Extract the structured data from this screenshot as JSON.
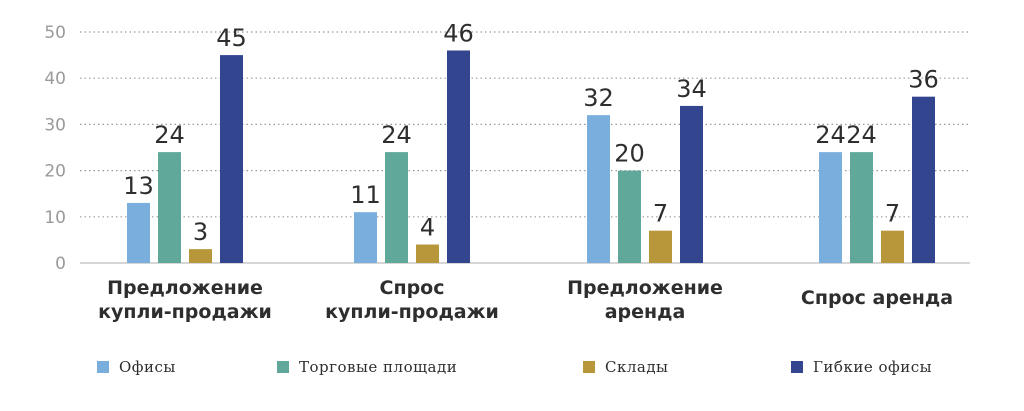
{
  "chart_data": {
    "type": "bar",
    "categories": [
      [
        "Предложение",
        "купли-продажи"
      ],
      [
        "Спрос",
        "купли-продажи"
      ],
      [
        "Предложение",
        "аренда"
      ],
      [
        "Спрос аренда"
      ]
    ],
    "series": [
      {
        "name": "Офисы",
        "color": "#7aaedc",
        "values": [
          13,
          11,
          32,
          24
        ]
      },
      {
        "name": "Торговые площади",
        "color": "#5fa89a",
        "values": [
          24,
          24,
          20,
          24
        ]
      },
      {
        "name": "Склады",
        "color": "#b8963a",
        "values": [
          3,
          4,
          7,
          7
        ]
      },
      {
        "name": "Гибкие офисы",
        "color": "#34458f",
        "values": [
          45,
          46,
          34,
          36
        ]
      }
    ],
    "y_ticks": [
      "0",
      "10",
      "20",
      "30",
      "40",
      "50"
    ],
    "ylim": [
      0,
      50
    ],
    "grid": true,
    "legend_position": "bottom"
  }
}
